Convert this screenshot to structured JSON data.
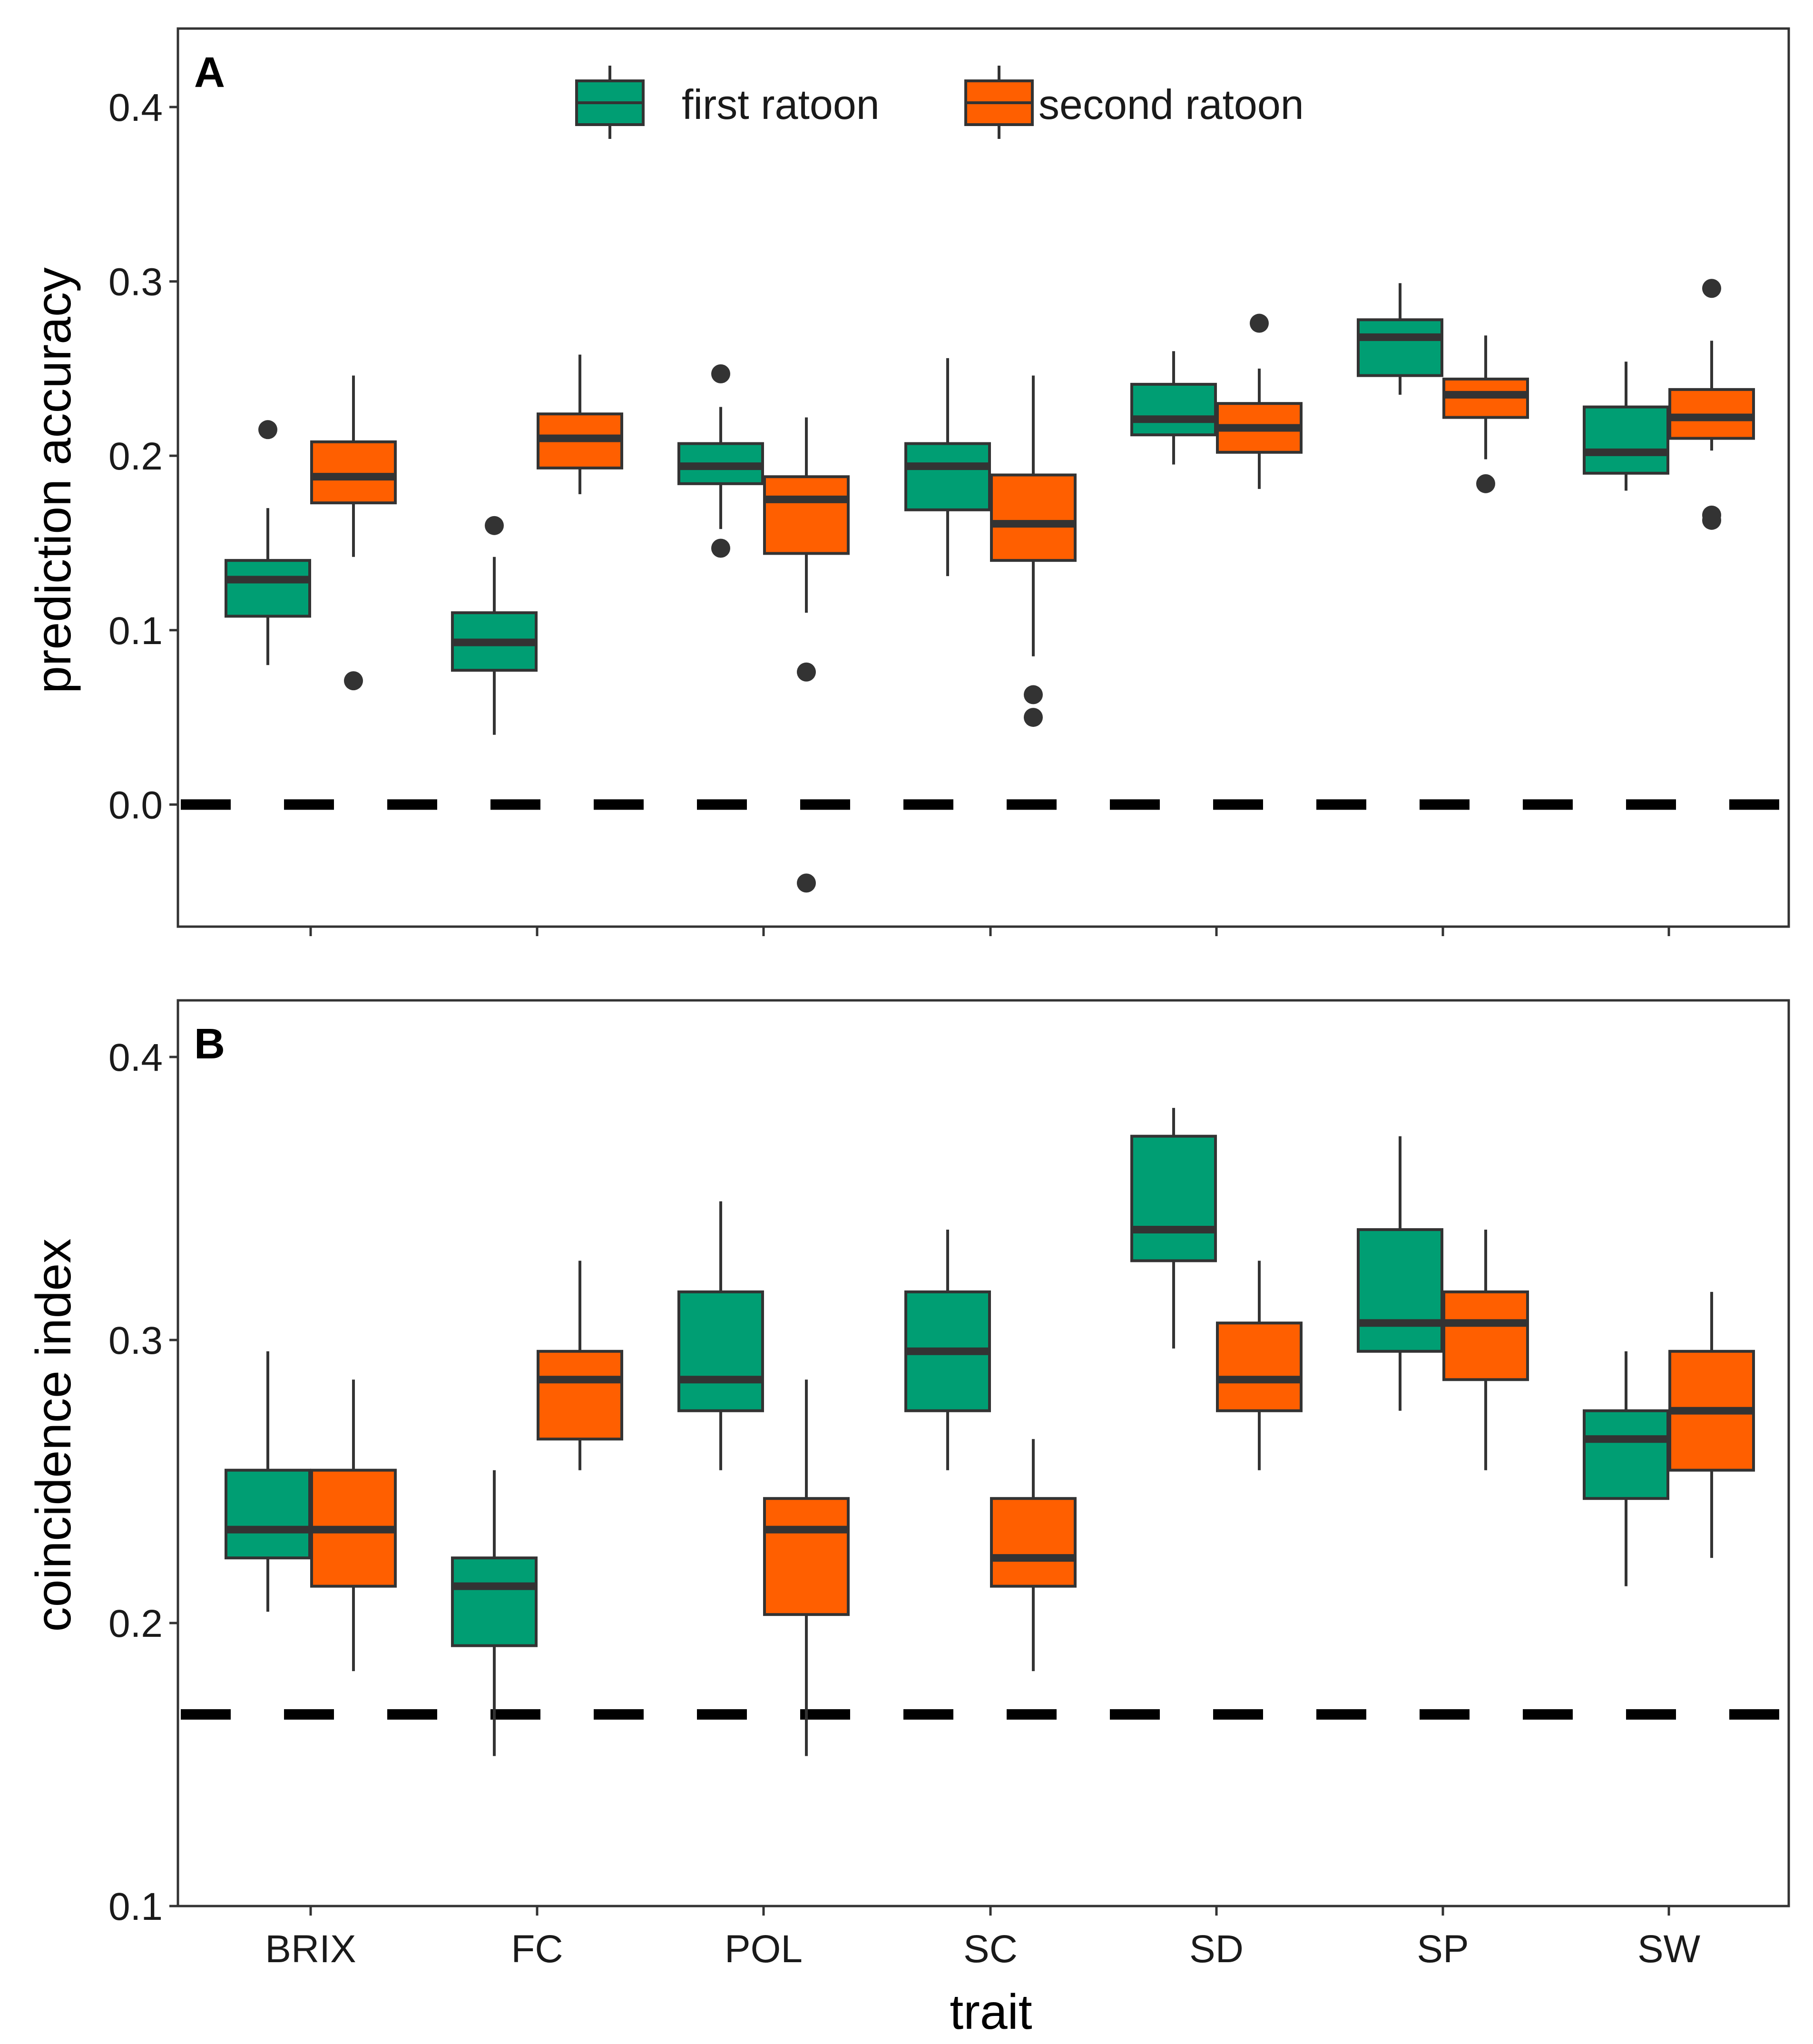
{
  "chart_data": [
    {
      "type": "boxplot",
      "panel": "A",
      "ylabel": "prediction accuracy",
      "xlabel": "",
      "ylim": [
        -0.07,
        0.445
      ],
      "yticks": [
        "0.0",
        "0.1",
        "0.2",
        "0.3",
        "0.4"
      ],
      "yticks_values": [
        0.0,
        0.1,
        0.2,
        0.3,
        0.4
      ],
      "reference_line": 0.0,
      "categories": [
        "BRIX",
        "FC",
        "POL",
        "SC",
        "SD",
        "SP",
        "SW"
      ],
      "legend": {
        "position": "top-center"
      },
      "series": [
        {
          "name": "first ratoon",
          "color": "#009E73",
          "boxes": [
            {
              "whisker_low": 0.08,
              "q1": 0.108,
              "median": 0.129,
              "q3": 0.14,
              "whisker_high": 0.17,
              "outliers": [
                0.215
              ]
            },
            {
              "whisker_low": 0.04,
              "q1": 0.077,
              "median": 0.093,
              "q3": 0.11,
              "whisker_high": 0.142,
              "outliers": [
                0.16
              ]
            },
            {
              "whisker_low": 0.158,
              "q1": 0.184,
              "median": 0.194,
              "q3": 0.207,
              "whisker_high": 0.228,
              "outliers": [
                0.247,
                0.147
              ]
            },
            {
              "whisker_low": 0.131,
              "q1": 0.169,
              "median": 0.194,
              "q3": 0.207,
              "whisker_high": 0.256,
              "outliers": []
            },
            {
              "whisker_low": 0.195,
              "q1": 0.212,
              "median": 0.221,
              "q3": 0.241,
              "whisker_high": 0.26,
              "outliers": []
            },
            {
              "whisker_low": 0.235,
              "q1": 0.246,
              "median": 0.268,
              "q3": 0.278,
              "whisker_high": 0.299,
              "outliers": []
            },
            {
              "whisker_low": 0.18,
              "q1": 0.19,
              "median": 0.202,
              "q3": 0.228,
              "whisker_high": 0.254,
              "outliers": []
            }
          ]
        },
        {
          "name": "second ratoon",
          "color": "#FF5F00",
          "boxes": [
            {
              "whisker_low": 0.142,
              "q1": 0.173,
              "median": 0.188,
              "q3": 0.208,
              "whisker_high": 0.246,
              "outliers": [
                0.071
              ]
            },
            {
              "whisker_low": 0.178,
              "q1": 0.193,
              "median": 0.21,
              "q3": 0.224,
              "whisker_high": 0.258,
              "outliers": []
            },
            {
              "whisker_low": 0.11,
              "q1": 0.144,
              "median": 0.175,
              "q3": 0.188,
              "whisker_high": 0.222,
              "outliers": [
                0.076,
                -0.045
              ]
            },
            {
              "whisker_low": 0.085,
              "q1": 0.14,
              "median": 0.161,
              "q3": 0.189,
              "whisker_high": 0.246,
              "outliers": [
                0.063,
                0.05
              ]
            },
            {
              "whisker_low": 0.181,
              "q1": 0.202,
              "median": 0.216,
              "q3": 0.23,
              "whisker_high": 0.25,
              "outliers": [
                0.276
              ]
            },
            {
              "whisker_low": 0.198,
              "q1": 0.222,
              "median": 0.235,
              "q3": 0.244,
              "whisker_high": 0.269,
              "outliers": [
                0.184
              ]
            },
            {
              "whisker_low": 0.203,
              "q1": 0.21,
              "median": 0.222,
              "q3": 0.238,
              "whisker_high": 0.266,
              "outliers": [
                0.296,
                0.166,
                0.163
              ]
            }
          ]
        }
      ]
    },
    {
      "type": "boxplot",
      "panel": "B",
      "ylabel": "coincidence index",
      "xlabel": "trait",
      "ylim": [
        0.1,
        0.42
      ],
      "yticks": [
        "0.1",
        "0.2",
        "0.3",
        "0.4"
      ],
      "yticks_values": [
        0.1,
        0.2,
        0.3,
        0.4
      ],
      "reference_line": 0.1677,
      "categories": [
        "BRIX",
        "FC",
        "POL",
        "SC",
        "SD",
        "SP",
        "SW"
      ],
      "series": [
        {
          "name": "first ratoon",
          "color": "#009E73",
          "boxes": [
            {
              "whisker_low": 0.204,
              "q1": 0.223,
              "median": 0.233,
              "q3": 0.254,
              "whisker_high": 0.296,
              "outliers": []
            },
            {
              "whisker_low": 0.153,
              "q1": 0.192,
              "median": 0.213,
              "q3": 0.223,
              "whisker_high": 0.254,
              "outliers": []
            },
            {
              "whisker_low": 0.254,
              "q1": 0.275,
              "median": 0.286,
              "q3": 0.317,
              "whisker_high": 0.349,
              "outliers": []
            },
            {
              "whisker_low": 0.254,
              "q1": 0.275,
              "median": 0.296,
              "q3": 0.317,
              "whisker_high": 0.339,
              "outliers": []
            },
            {
              "whisker_low": 0.297,
              "q1": 0.328,
              "median": 0.339,
              "q3": 0.372,
              "whisker_high": 0.382,
              "outliers": []
            },
            {
              "whisker_low": 0.275,
              "q1": 0.296,
              "median": 0.306,
              "q3": 0.339,
              "whisker_high": 0.372,
              "outliers": []
            },
            {
              "whisker_low": 0.213,
              "q1": 0.244,
              "median": 0.265,
              "q3": 0.275,
              "whisker_high": 0.296,
              "outliers": []
            }
          ]
        },
        {
          "name": "second ratoon",
          "color": "#FF5F00",
          "boxes": [
            {
              "whisker_low": 0.183,
              "q1": 0.213,
              "median": 0.233,
              "q3": 0.254,
              "whisker_high": 0.286,
              "outliers": []
            },
            {
              "whisker_low": 0.254,
              "q1": 0.265,
              "median": 0.286,
              "q3": 0.296,
              "whisker_high": 0.328,
              "outliers": []
            },
            {
              "whisker_low": 0.153,
              "q1": 0.203,
              "median": 0.233,
              "q3": 0.244,
              "whisker_high": 0.286,
              "outliers": []
            },
            {
              "whisker_low": 0.183,
              "q1": 0.213,
              "median": 0.223,
              "q3": 0.244,
              "whisker_high": 0.265,
              "outliers": []
            },
            {
              "whisker_low": 0.254,
              "q1": 0.275,
              "median": 0.286,
              "q3": 0.306,
              "whisker_high": 0.328,
              "outliers": []
            },
            {
              "whisker_low": 0.254,
              "q1": 0.286,
              "median": 0.306,
              "q3": 0.317,
              "whisker_high": 0.339,
              "outliers": []
            },
            {
              "whisker_low": 0.223,
              "q1": 0.254,
              "median": 0.275,
              "q3": 0.296,
              "whisker_high": 0.317,
              "outliers": []
            }
          ]
        }
      ]
    }
  ]
}
